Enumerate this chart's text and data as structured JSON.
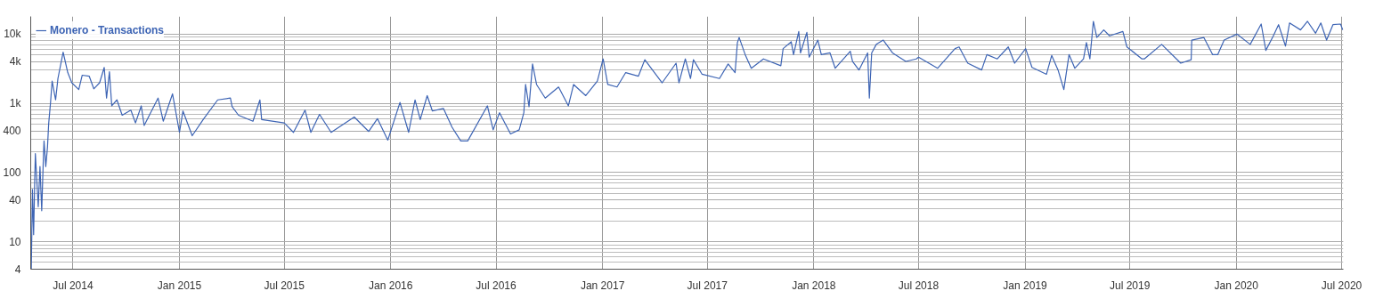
{
  "chart_data": {
    "type": "line",
    "log": "y",
    "grid": true,
    "legend": "top left",
    "marker": "none",
    "line_style": "solid",
    "xlim": [
      "2014-04-19",
      "2020-07-04"
    ],
    "ylim": [
      4,
      18000
    ],
    "xticks": [
      {
        "value": "2014-07-01",
        "label": "Jul 2014"
      },
      {
        "value": "2015-01-01",
        "label": "Jan 2015"
      },
      {
        "value": "2015-07-01",
        "label": "Jul 2015"
      },
      {
        "value": "2016-01-01",
        "label": "Jan 2016"
      },
      {
        "value": "2016-07-01",
        "label": "Jul 2016"
      },
      {
        "value": "2017-01-01",
        "label": "Jan 2017"
      },
      {
        "value": "2017-07-01",
        "label": "Jul 2017"
      },
      {
        "value": "2018-01-01",
        "label": "Jan 2018"
      },
      {
        "value": "2018-07-01",
        "label": "Jul 2018"
      },
      {
        "value": "2019-01-01",
        "label": "Jan 2019"
      },
      {
        "value": "2019-07-01",
        "label": "Jul 2019"
      },
      {
        "value": "2020-01-01",
        "label": "Jan 2020"
      },
      {
        "value": "2020-07-01",
        "label": "Jul 2020"
      }
    ],
    "yticks": [
      4,
      10,
      40,
      100,
      400,
      {
        "value": 1000,
        "label": "1k"
      },
      {
        "value": 4000,
        "label": "4k"
      },
      {
        "value": 10000,
        "label": "10k"
      }
    ],
    "series": [
      {
        "name": "Monero - Transactions",
        "color": "#3d64b4",
        "x": [
          "2014-04-20",
          "2014-04-22",
          "2014-04-24",
          "2014-04-26",
          "2014-04-27",
          "2014-05-02",
          "2014-05-05",
          "2014-05-08",
          "2014-05-11",
          "2014-05-12",
          "2014-05-15",
          "2014-05-18",
          "2014-05-20",
          "2014-05-23",
          "2014-05-26",
          "2014-06-01",
          "2014-06-05",
          "2014-06-14",
          "2014-06-22",
          "2014-06-29",
          "2014-07-11",
          "2014-07-17",
          "2014-07-29",
          "2014-08-06",
          "2014-08-16",
          "2014-08-24",
          "2014-08-28",
          "2014-09-02",
          "2014-09-06",
          "2014-09-15",
          "2014-09-24",
          "2014-10-09",
          "2014-10-17",
          "2014-10-27",
          "2014-11-01",
          "2014-11-25",
          "2014-12-04",
          "2014-12-20",
          "2015-01-01",
          "2015-01-07",
          "2015-01-23",
          "2015-02-12",
          "2015-03-08",
          "2015-03-30",
          "2015-04-02",
          "2015-04-13",
          "2015-05-08",
          "2015-05-20",
          "2015-05-23",
          "2015-07-01",
          "2015-07-17",
          "2015-08-06",
          "2015-08-16",
          "2015-08-31",
          "2015-09-20",
          "2015-10-30",
          "2015-11-24",
          "2015-12-09",
          "2015-12-27",
          "2016-01-17",
          "2016-02-01",
          "2016-02-12",
          "2016-02-21",
          "2016-03-04",
          "2016-03-13",
          "2016-04-01",
          "2016-04-16",
          "2016-05-01",
          "2016-05-13",
          "2016-06-16",
          "2016-06-26",
          "2016-07-07",
          "2016-07-26",
          "2016-08-10",
          "2016-08-18",
          "2016-08-21",
          "2016-08-27",
          "2016-09-02",
          "2016-09-09",
          "2016-09-24",
          "2016-10-17",
          "2016-11-03",
          "2016-11-12",
          "2016-12-03",
          "2016-12-23",
          "2017-01-02",
          "2017-01-10",
          "2017-01-26",
          "2017-02-10",
          "2017-03-04",
          "2017-03-15",
          "2017-04-14",
          "2017-05-08",
          "2017-05-13",
          "2017-05-24",
          "2017-06-02",
          "2017-06-07",
          "2017-06-22",
          "2017-07-22",
          "2017-08-06",
          "2017-08-18",
          "2017-08-22",
          "2017-08-25",
          "2017-09-05",
          "2017-09-15",
          "2017-10-06",
          "2017-11-05",
          "2017-11-09",
          "2017-11-23",
          "2017-11-27",
          "2017-12-06",
          "2017-12-09",
          "2017-12-20",
          "2017-12-24",
          "2018-01-08",
          "2018-01-14",
          "2018-01-29",
          "2018-02-07",
          "2018-03-05",
          "2018-03-09",
          "2018-03-20",
          "2018-04-04",
          "2018-04-07",
          "2018-04-11",
          "2018-04-19",
          "2018-05-01",
          "2018-05-17",
          "2018-06-09",
          "2018-06-27",
          "2018-07-01",
          "2018-08-03",
          "2018-09-02",
          "2018-09-09",
          "2018-09-24",
          "2018-10-18",
          "2018-10-27",
          "2018-11-14",
          "2018-12-03",
          "2018-12-14",
          "2019-01-02",
          "2019-01-13",
          "2019-02-07",
          "2019-02-16",
          "2019-02-27",
          "2019-03-09",
          "2019-03-18",
          "2019-03-28",
          "2019-04-12",
          "2019-04-17",
          "2019-04-23",
          "2019-04-29",
          "2019-05-05",
          "2019-05-17",
          "2019-05-27",
          "2019-06-19",
          "2019-06-26",
          "2019-07-22",
          "2019-07-26",
          "2019-08-25",
          "2019-09-27",
          "2019-10-15",
          "2019-10-16",
          "2019-11-06",
          "2019-11-21",
          "2019-11-30",
          "2019-12-11",
          "2020-01-02",
          "2020-01-25",
          "2020-02-13",
          "2020-02-21",
          "2020-03-05",
          "2020-03-14",
          "2020-03-26",
          "2020-04-02",
          "2020-04-21",
          "2020-05-03",
          "2020-05-17",
          "2020-05-26",
          "2020-06-05",
          "2020-06-16",
          "2020-06-29",
          "2020-07-03"
        ],
        "values": [
          4,
          57,
          12.6,
          82,
          187,
          32,
          122,
          28,
          177,
          286,
          122,
          234,
          506,
          973,
          2100,
          1120,
          2280,
          5500,
          2780,
          1980,
          1580,
          2550,
          2470,
          1620,
          1980,
          3300,
          1190,
          2860,
          918,
          1120,
          672,
          796,
          520,
          918,
          478,
          1190,
          551,
          1370,
          380,
          774,
          340,
          600,
          1120,
          1190,
          893,
          672,
          551,
          1120,
          582,
          520,
          380,
          796,
          380,
          692,
          380,
          634,
          392,
          600,
          294,
          1030,
          380,
          1120,
          582,
          1290,
          774,
          843,
          451,
          286,
          286,
          918,
          414,
          731,
          360,
          414,
          731,
          1870,
          893,
          3700,
          1870,
          1190,
          1720,
          918,
          1870,
          1290,
          2100,
          4380,
          1870,
          1720,
          2780,
          2470,
          4260,
          1980,
          3800,
          1980,
          4380,
          2280,
          4260,
          2630,
          2280,
          3700,
          2780,
          7530,
          8930,
          4910,
          3210,
          4380,
          3490,
          6170,
          7740,
          5060,
          10900,
          5350,
          10600,
          4640,
          8200,
          5060,
          5350,
          3210,
          5660,
          4030,
          3030,
          5350,
          1190,
          5350,
          7110,
          8200,
          5350,
          4030,
          4380,
          4640,
          3210,
          6170,
          6530,
          3800,
          3030,
          5060,
          4380,
          6530,
          3800,
          6170,
          3300,
          2630,
          4910,
          3030,
          1580,
          5060,
          3210,
          4380,
          7530,
          4380,
          15300,
          8930,
          11500,
          9450,
          10900,
          6530,
          4380,
          4380,
          7110,
          3800,
          4260,
          8200,
          8930,
          5060,
          5060,
          8200,
          10000,
          7110,
          14000,
          5820,
          9450,
          13700,
          6720,
          14500,
          11500,
          15300,
          10300,
          14500,
          8200,
          13700,
          14000,
          11500
        ]
      }
    ]
  }
}
